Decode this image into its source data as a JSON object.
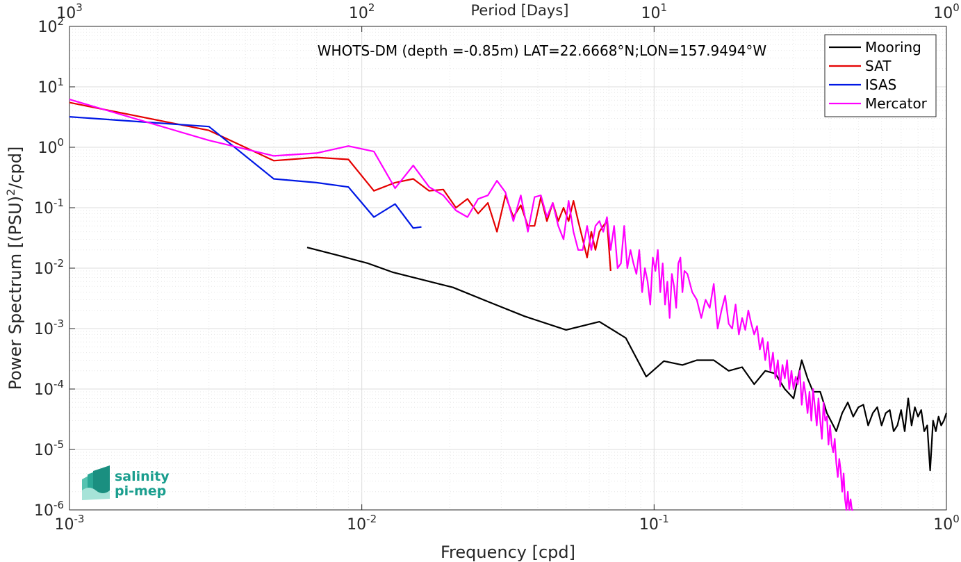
{
  "chart_data": {
    "type": "line",
    "annotation": "WHOTS-DM (depth =-0.85m) LAT=22.6668°N;LON=157.9494°W",
    "xlabel": "Frequency [cpd]",
    "ylabel": "Power Spectrum [(PSU)²/cpd]",
    "top_xlabel": "Period [Days]",
    "x_scale": "log",
    "y_scale": "log",
    "xlim": [
      0.001,
      1
    ],
    "ylim": [
      1e-06,
      100
    ],
    "grid": true,
    "legend_position": "top-right",
    "x_ticks": [
      {
        "value": 0.001,
        "base": "10",
        "exp": "-3"
      },
      {
        "value": 0.01,
        "base": "10",
        "exp": "-2"
      },
      {
        "value": 0.1,
        "base": "10",
        "exp": "-1"
      },
      {
        "value": 1,
        "base": "10",
        "exp": "0"
      }
    ],
    "top_ticks": [
      {
        "value": 0.001,
        "base": "10",
        "exp": "3"
      },
      {
        "value": 0.01,
        "base": "10",
        "exp": "2"
      },
      {
        "value": 0.1,
        "base": "10",
        "exp": "1"
      },
      {
        "value": 1,
        "base": "10",
        "exp": "0"
      }
    ],
    "y_ticks": [
      {
        "value": 1e-06,
        "base": "10",
        "exp": "-6"
      },
      {
        "value": 1e-05,
        "base": "10",
        "exp": "-5"
      },
      {
        "value": 0.0001,
        "base": "10",
        "exp": "-4"
      },
      {
        "value": 0.001,
        "base": "10",
        "exp": "-3"
      },
      {
        "value": 0.01,
        "base": "10",
        "exp": "-2"
      },
      {
        "value": 0.1,
        "base": "10",
        "exp": "-1"
      },
      {
        "value": 1,
        "base": "10",
        "exp": "0"
      },
      {
        "value": 10,
        "base": "10",
        "exp": "1"
      },
      {
        "value": 100,
        "base": "10",
        "exp": "2"
      }
    ],
    "series": [
      {
        "name": "Mooring",
        "color": "#000000",
        "x": [
          0.0065,
          0.0084,
          0.0105,
          0.0128,
          0.016,
          0.0205,
          0.027,
          0.036,
          0.05,
          0.065,
          0.08,
          0.094,
          0.108,
          0.125,
          0.14,
          0.16,
          0.18,
          0.2,
          0.22,
          0.24,
          0.26,
          0.28,
          0.3,
          0.32,
          0.335,
          0.35,
          0.37,
          0.39,
          0.42,
          0.44,
          0.46,
          0.48,
          0.5,
          0.52,
          0.54,
          0.56,
          0.58,
          0.6,
          0.62,
          0.64,
          0.66,
          0.68,
          0.7,
          0.72,
          0.74,
          0.76,
          0.78,
          0.8,
          0.82,
          0.84,
          0.86,
          0.88,
          0.9,
          0.92,
          0.94,
          0.96,
          0.98,
          1.0
        ],
        "values": [
          0.022,
          0.016,
          0.012,
          0.0085,
          0.0065,
          0.0048,
          0.0028,
          0.0016,
          0.00095,
          0.0013,
          0.0007,
          0.00016,
          0.00029,
          0.00025,
          0.0003,
          0.0003,
          0.0002,
          0.00023,
          0.00012,
          0.0002,
          0.00018,
          0.0001,
          7e-05,
          0.0003,
          0.00015,
          9e-05,
          9e-05,
          4e-05,
          2e-05,
          4e-05,
          6e-05,
          3.5e-05,
          5e-05,
          5.5e-05,
          2.5e-05,
          4e-05,
          5e-05,
          2.5e-05,
          4e-05,
          4.5e-05,
          2e-05,
          2.5e-05,
          4.5e-05,
          2e-05,
          7e-05,
          2.5e-05,
          5e-05,
          3.5e-05,
          4.5e-05,
          2e-05,
          2.5e-05,
          4.5e-06,
          3e-05,
          2e-05,
          3.5e-05,
          2.5e-05,
          3e-05,
          4e-05
        ]
      },
      {
        "name": "SAT",
        "color": "#e50000",
        "x": [
          0.001,
          0.003,
          0.005,
          0.007,
          0.009,
          0.011,
          0.013,
          0.015,
          0.017,
          0.019,
          0.021,
          0.023,
          0.025,
          0.027,
          0.029,
          0.031,
          0.033,
          0.035,
          0.037,
          0.039,
          0.041,
          0.043,
          0.045,
          0.047,
          0.049,
          0.051,
          0.053,
          0.055,
          0.057,
          0.059,
          0.061,
          0.063,
          0.065,
          0.067,
          0.069,
          0.071
        ],
        "values": [
          5.5,
          1.9,
          0.6,
          0.68,
          0.63,
          0.19,
          0.26,
          0.3,
          0.19,
          0.2,
          0.1,
          0.14,
          0.08,
          0.12,
          0.04,
          0.16,
          0.07,
          0.11,
          0.05,
          0.05,
          0.15,
          0.06,
          0.12,
          0.06,
          0.1,
          0.06,
          0.13,
          0.06,
          0.03,
          0.015,
          0.04,
          0.02,
          0.04,
          0.05,
          0.06,
          0.009
        ]
      },
      {
        "name": "ISAS",
        "color": "#0018e5",
        "x": [
          0.001,
          0.003,
          0.005,
          0.007,
          0.009,
          0.011,
          0.013,
          0.015,
          0.016
        ],
        "values": [
          3.2,
          2.2,
          0.3,
          0.26,
          0.22,
          0.07,
          0.115,
          0.046,
          0.048
        ]
      },
      {
        "name": "Mercator",
        "color": "#ff00ff",
        "x": [
          0.001,
          0.003,
          0.005,
          0.007,
          0.009,
          0.011,
          0.013,
          0.015,
          0.017,
          0.019,
          0.021,
          0.023,
          0.025,
          0.027,
          0.029,
          0.031,
          0.033,
          0.035,
          0.037,
          0.039,
          0.041,
          0.043,
          0.045,
          0.047,
          0.049,
          0.051,
          0.053,
          0.055,
          0.057,
          0.059,
          0.061,
          0.063,
          0.065,
          0.067,
          0.069,
          0.071,
          0.073,
          0.075,
          0.077,
          0.079,
          0.081,
          0.083,
          0.085,
          0.087,
          0.089,
          0.091,
          0.093,
          0.095,
          0.097,
          0.099,
          0.101,
          0.103,
          0.105,
          0.107,
          0.109,
          0.111,
          0.113,
          0.115,
          0.117,
          0.119,
          0.121,
          0.123,
          0.125,
          0.127,
          0.13,
          0.135,
          0.14,
          0.145,
          0.15,
          0.155,
          0.16,
          0.165,
          0.17,
          0.175,
          0.18,
          0.185,
          0.19,
          0.195,
          0.2,
          0.205,
          0.21,
          0.215,
          0.22,
          0.225,
          0.23,
          0.235,
          0.24,
          0.245,
          0.25,
          0.255,
          0.26,
          0.265,
          0.27,
          0.275,
          0.28,
          0.285,
          0.29,
          0.295,
          0.3,
          0.305,
          0.31,
          0.315,
          0.32,
          0.325,
          0.33,
          0.335,
          0.34,
          0.345,
          0.35,
          0.355,
          0.36,
          0.365,
          0.37,
          0.375,
          0.38,
          0.385,
          0.39,
          0.395,
          0.4,
          0.405,
          0.41,
          0.415,
          0.42,
          0.425,
          0.43,
          0.435,
          0.44,
          0.445,
          0.45,
          0.455,
          0.46,
          0.465,
          0.47,
          0.475,
          0.48
        ],
        "values": [
          6.2,
          1.3,
          0.72,
          0.8,
          1.05,
          0.85,
          0.21,
          0.5,
          0.22,
          0.16,
          0.09,
          0.07,
          0.14,
          0.16,
          0.28,
          0.18,
          0.06,
          0.16,
          0.04,
          0.15,
          0.16,
          0.07,
          0.12,
          0.05,
          0.03,
          0.13,
          0.04,
          0.02,
          0.02,
          0.05,
          0.02,
          0.05,
          0.06,
          0.04,
          0.07,
          0.02,
          0.05,
          0.01,
          0.012,
          0.05,
          0.01,
          0.02,
          0.012,
          0.008,
          0.02,
          0.004,
          0.01,
          0.006,
          0.0025,
          0.015,
          0.009,
          0.02,
          0.004,
          0.012,
          0.0025,
          0.006,
          0.0015,
          0.008,
          0.005,
          0.0022,
          0.012,
          0.015,
          0.004,
          0.009,
          0.008,
          0.004,
          0.003,
          0.0015,
          0.003,
          0.0022,
          0.0055,
          0.001,
          0.002,
          0.0035,
          0.0012,
          0.001,
          0.0025,
          0.0008,
          0.0015,
          0.00095,
          0.002,
          0.0012,
          0.0008,
          0.0011,
          0.00045,
          0.0007,
          0.0003,
          0.0006,
          0.0002,
          0.0004,
          0.00015,
          0.0003,
          0.00011,
          0.00025,
          0.00015,
          0.0003,
          0.0001,
          0.0002,
          0.0001,
          0.00016,
          0.00012,
          0.0002,
          5.5e-05,
          0.00013,
          8e-05,
          4e-05,
          9e-05,
          3e-05,
          0.0001,
          5e-05,
          2.5e-05,
          7e-05,
          3e-05,
          1.5e-05,
          6e-05,
          3e-05,
          3.5e-05,
          1.2e-05,
          2.5e-05,
          1.2e-05,
          9e-06,
          1.5e-05,
          6e-06,
          3.5e-06,
          7e-06,
          4.5e-06,
          2e-06,
          4e-06,
          1.5e-06,
          1e-06,
          2e-06,
          1e-06,
          1.5e-06,
          1e-06,
          1e-06
        ]
      }
    ]
  },
  "logo": {
    "line1": "salinity",
    "line2": "pi-mep"
  }
}
